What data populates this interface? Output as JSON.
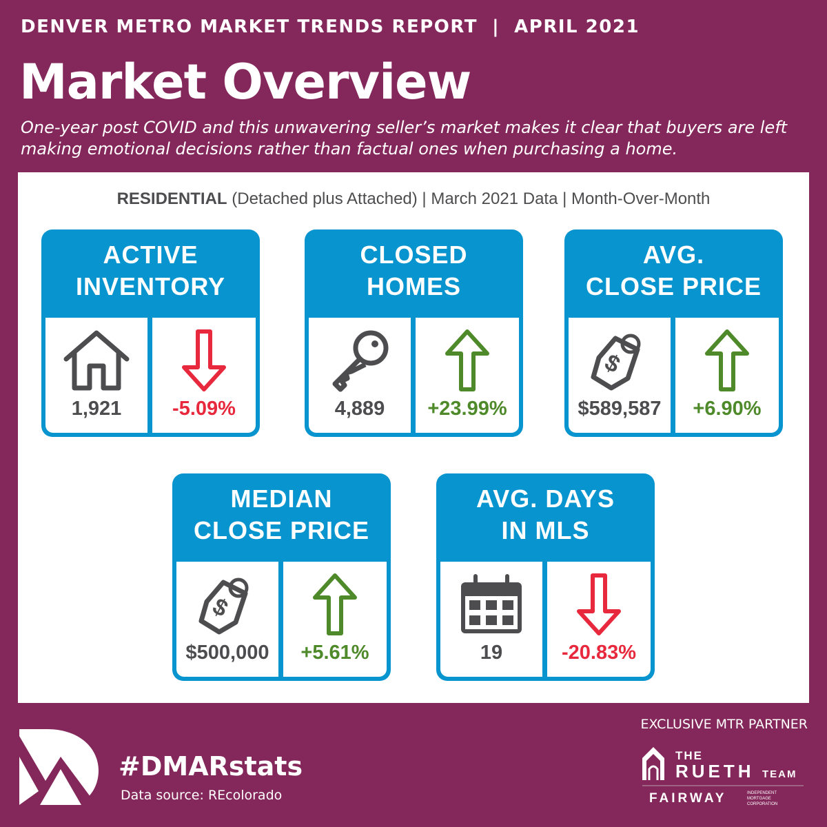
{
  "header": {
    "kicker": "DENVER METRO MARKET TRENDS REPORT  |  APRIL 2021",
    "title": "Market Overview",
    "subtitle": "One-year post COVID and this unwavering seller’s market makes it clear that buyers are left making emotional decisions rather than factual ones when purchasing a home."
  },
  "panel": {
    "label_bold": "RESIDENTIAL",
    "label_rest": " (Detached plus Attached) | March 2021 Data | Month-Over-Month"
  },
  "colors": {
    "background": "#84275a",
    "card": "#0894ce",
    "down": "#e8283c",
    "up": "#4e8a2a",
    "icon": "#4d4d4f"
  },
  "cards": [
    {
      "title1": "ACTIVE",
      "title2": "INVENTORY",
      "value": "1,921",
      "change": "-5.09%",
      "direction": "down",
      "icon": "house-icon"
    },
    {
      "title1": "CLOSED",
      "title2": "HOMES",
      "value": "4,889",
      "change": "+23.99%",
      "direction": "up",
      "icon": "key-icon"
    },
    {
      "title1": "AVG.",
      "title2": "CLOSE PRICE",
      "value": "$589,587",
      "change": "+6.90%",
      "direction": "up",
      "icon": "price-tag-icon"
    },
    {
      "title1": "MEDIAN",
      "title2": "CLOSE PRICE",
      "value": "$500,000",
      "change": "+5.61%",
      "direction": "up",
      "icon": "price-tag-icon"
    },
    {
      "title1": "AVG. DAYS",
      "title2": "IN MLS",
      "value": "19",
      "change": "-20.83%",
      "direction": "down",
      "icon": "calendar-icon"
    }
  ],
  "footer": {
    "hashtag": "#DMARstats",
    "source": "Data source: REcolorado",
    "partner": "EXCLUSIVE MTR PARTNER",
    "partner_logo": "THE RUETH TEAM FAIRWAY INDEPENDENT MORTGAGE CORPORATION"
  }
}
